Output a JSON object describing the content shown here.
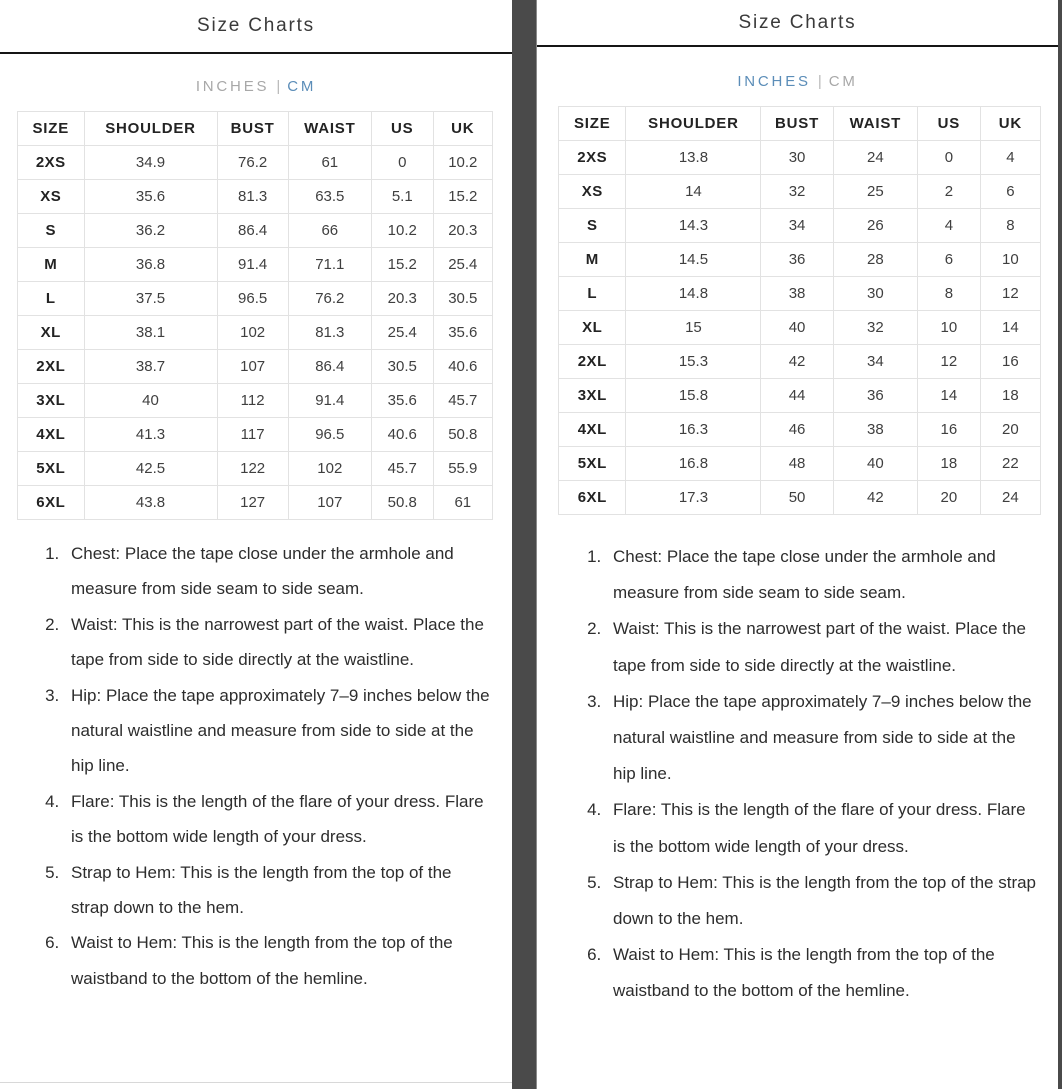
{
  "colors": {
    "accent_blue": "#5b8db8",
    "inactive_gray": "#a8a8a8",
    "divider_gray": "#4a4a4a"
  },
  "panels": [
    {
      "title": "Size Charts",
      "units": {
        "inches_label": "INCHES",
        "separator": "|",
        "cm_label": "CM",
        "active_unit": "CM"
      },
      "size_table": {
        "headers": [
          "SIZE",
          "SHOULDER",
          "BUST",
          "WAIST",
          "US",
          "UK"
        ],
        "rows": [
          [
            "2XS",
            "34.9",
            "76.2",
            "61",
            "0",
            "10.2"
          ],
          [
            "XS",
            "35.6",
            "81.3",
            "63.5",
            "5.1",
            "15.2"
          ],
          [
            "S",
            "36.2",
            "86.4",
            "66",
            "10.2",
            "20.3"
          ],
          [
            "M",
            "36.8",
            "91.4",
            "71.1",
            "15.2",
            "25.4"
          ],
          [
            "L",
            "37.5",
            "96.5",
            "76.2",
            "20.3",
            "30.5"
          ],
          [
            "XL",
            "38.1",
            "102",
            "81.3",
            "25.4",
            "35.6"
          ],
          [
            "2XL",
            "38.7",
            "107",
            "86.4",
            "30.5",
            "40.6"
          ],
          [
            "3XL",
            "40",
            "112",
            "91.4",
            "35.6",
            "45.7"
          ],
          [
            "4XL",
            "41.3",
            "117",
            "96.5",
            "40.6",
            "50.8"
          ],
          [
            "5XL",
            "42.5",
            "122",
            "102",
            "45.7",
            "55.9"
          ],
          [
            "6XL",
            "43.8",
            "127",
            "107",
            "50.8",
            "61"
          ]
        ]
      },
      "measuring_instructions": [
        "Chest: Place the tape close under the armhole and measure from side seam to side seam.",
        "Waist: This is the narrowest part of the waist. Place the tape from side to side directly at the waistline.",
        "Hip: Place the tape approximately 7–9 inches below the natural waistline and measure from side to side at the hip line.",
        "Flare: This is the length of the flare of your dress. Flare is the bottom wide length of your dress.",
        "Strap to Hem: This is the length from the top of the strap down to the hem.",
        "Waist to Hem: This is the length from the top of the waistband to the bottom of the hemline."
      ]
    },
    {
      "title": "Size Charts",
      "units": {
        "inches_label": "INCHES",
        "separator": "|",
        "cm_label": "CM",
        "active_unit": "INCHES"
      },
      "size_table": {
        "headers": [
          "SIZE",
          "SHOULDER",
          "BUST",
          "WAIST",
          "US",
          "UK"
        ],
        "rows": [
          [
            "2XS",
            "13.8",
            "30",
            "24",
            "0",
            "4"
          ],
          [
            "XS",
            "14",
            "32",
            "25",
            "2",
            "6"
          ],
          [
            "S",
            "14.3",
            "34",
            "26",
            "4",
            "8"
          ],
          [
            "M",
            "14.5",
            "36",
            "28",
            "6",
            "10"
          ],
          [
            "L",
            "14.8",
            "38",
            "30",
            "8",
            "12"
          ],
          [
            "XL",
            "15",
            "40",
            "32",
            "10",
            "14"
          ],
          [
            "2XL",
            "15.3",
            "42",
            "34",
            "12",
            "16"
          ],
          [
            "3XL",
            "15.8",
            "44",
            "36",
            "14",
            "18"
          ],
          [
            "4XL",
            "16.3",
            "46",
            "38",
            "16",
            "20"
          ],
          [
            "5XL",
            "16.8",
            "48",
            "40",
            "18",
            "22"
          ],
          [
            "6XL",
            "17.3",
            "50",
            "42",
            "20",
            "24"
          ]
        ]
      },
      "measuring_instructions": [
        "Chest: Place the tape close under the armhole and measure from side seam to side seam.",
        "Waist: This is the narrowest part of the waist. Place the tape from side to side directly at the waistline.",
        "Hip: Place the tape approximately 7–9 inches below the natural waistline and measure from side to side at the hip line.",
        "Flare: This is the length of the flare of your dress. Flare is the bottom wide length of your dress.",
        "Strap to Hem: This is the length from the top of the strap down to the hem.",
        "Waist to Hem: This is the length from the top of the waistband to the bottom of the hemline."
      ]
    }
  ]
}
